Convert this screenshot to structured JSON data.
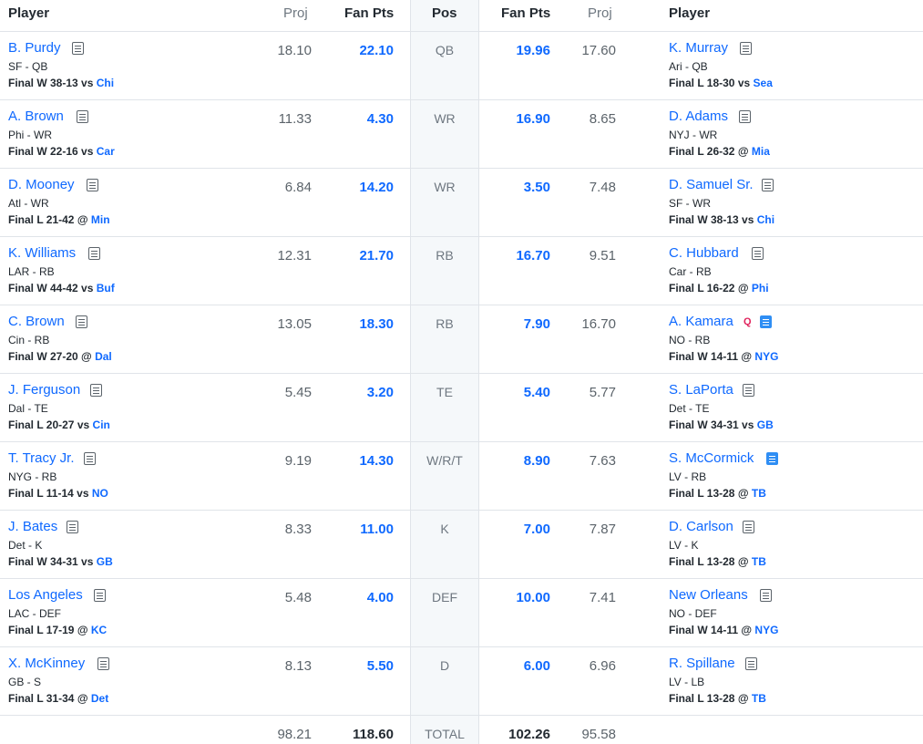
{
  "headers": {
    "left_player": "Player",
    "left_proj": "Proj",
    "left_fan_pts": "Fan Pts",
    "pos": "Pos",
    "right_fan_pts": "Fan Pts",
    "right_proj": "Proj",
    "right_player": "Player"
  },
  "rows": [
    {
      "pos": "QB",
      "left": {
        "name": "B. Purdy",
        "team": "SF - QB",
        "result": "Final W 38-13",
        "loc": "vs",
        "opp": "Chi",
        "proj": "18.10",
        "pts": "22.10",
        "note": "normal"
      },
      "right": {
        "name": "K. Murray",
        "team": "Ari - QB",
        "result": "Final L 18-30",
        "loc": "vs",
        "opp": "Sea",
        "proj": "17.60",
        "pts": "19.96",
        "note": "normal"
      }
    },
    {
      "pos": "WR",
      "left": {
        "name": "A. Brown",
        "team": "Phi - WR",
        "result": "Final W 22-16",
        "loc": "vs",
        "opp": "Car",
        "proj": "11.33",
        "pts": "4.30",
        "note": "normal"
      },
      "right": {
        "name": "D. Adams",
        "team": "NYJ - WR",
        "result": "Final L 26-32",
        "loc": "@",
        "opp": "Mia",
        "proj": "8.65",
        "pts": "16.90",
        "note": "normal"
      }
    },
    {
      "pos": "WR",
      "left": {
        "name": "D. Mooney",
        "team": "Atl - WR",
        "result": "Final L 21-42",
        "loc": "@",
        "opp": "Min",
        "proj": "6.84",
        "pts": "14.20",
        "note": "normal"
      },
      "right": {
        "name": "D. Samuel Sr.",
        "team": "SF - WR",
        "result": "Final W 38-13",
        "loc": "vs",
        "opp": "Chi",
        "proj": "7.48",
        "pts": "3.50",
        "note": "normal"
      }
    },
    {
      "pos": "RB",
      "left": {
        "name": "K. Williams",
        "team": "LAR - RB",
        "result": "Final W 44-42",
        "loc": "vs",
        "opp": "Buf",
        "proj": "12.31",
        "pts": "21.70",
        "note": "normal"
      },
      "right": {
        "name": "C. Hubbard",
        "team": "Car - RB",
        "result": "Final L 16-22",
        "loc": "@",
        "opp": "Phi",
        "proj": "9.51",
        "pts": "16.70",
        "note": "normal"
      }
    },
    {
      "pos": "RB",
      "left": {
        "name": "C. Brown",
        "team": "Cin - RB",
        "result": "Final W 27-20",
        "loc": "@",
        "opp": "Dal",
        "proj": "13.05",
        "pts": "18.30",
        "note": "normal"
      },
      "right": {
        "name": "A. Kamara",
        "status": "Q",
        "team": "NO - RB",
        "result": "Final W 14-11",
        "loc": "@",
        "opp": "NYG",
        "proj": "16.70",
        "pts": "7.90",
        "note": "blue"
      }
    },
    {
      "pos": "TE",
      "left": {
        "name": "J. Ferguson",
        "team": "Dal - TE",
        "result": "Final L 20-27",
        "loc": "vs",
        "opp": "Cin",
        "proj": "5.45",
        "pts": "3.20",
        "note": "normal"
      },
      "right": {
        "name": "S. LaPorta",
        "team": "Det - TE",
        "result": "Final W 34-31",
        "loc": "vs",
        "opp": "GB",
        "proj": "5.77",
        "pts": "5.40",
        "note": "normal"
      }
    },
    {
      "pos": "W/R/T",
      "left": {
        "name": "T. Tracy Jr.",
        "team": "NYG - RB",
        "result": "Final L 11-14",
        "loc": "vs",
        "opp": "NO",
        "proj": "9.19",
        "pts": "14.30",
        "note": "normal"
      },
      "right": {
        "name": "S. McCormick",
        "team": "LV - RB",
        "result": "Final L 13-28",
        "loc": "@",
        "opp": "TB",
        "proj": "7.63",
        "pts": "8.90",
        "note": "blue"
      }
    },
    {
      "pos": "K",
      "left": {
        "name": "J. Bates",
        "team": "Det - K",
        "result": "Final W 34-31",
        "loc": "vs",
        "opp": "GB",
        "proj": "8.33",
        "pts": "11.00",
        "note": "normal"
      },
      "right": {
        "name": "D. Carlson",
        "team": "LV - K",
        "result": "Final L 13-28",
        "loc": "@",
        "opp": "TB",
        "proj": "7.87",
        "pts": "7.00",
        "note": "normal"
      }
    },
    {
      "pos": "DEF",
      "left": {
        "name": "Los Angeles",
        "team": "LAC - DEF",
        "result": "Final L 17-19",
        "loc": "@",
        "opp": "KC",
        "proj": "5.48",
        "pts": "4.00",
        "note": "normal"
      },
      "right": {
        "name": "New Orleans",
        "team": "NO - DEF",
        "result": "Final W 14-11",
        "loc": "@",
        "opp": "NYG",
        "proj": "7.41",
        "pts": "10.00",
        "note": "normal"
      }
    },
    {
      "pos": "D",
      "left": {
        "name": "X. McKinney",
        "team": "GB - S",
        "result": "Final L 31-34",
        "loc": "@",
        "opp": "Det",
        "proj": "8.13",
        "pts": "5.50",
        "note": "normal"
      },
      "right": {
        "name": "R. Spillane",
        "team": "LV - LB",
        "result": "Final L 13-28",
        "loc": "@",
        "opp": "TB",
        "proj": "6.96",
        "pts": "6.00",
        "note": "normal"
      }
    }
  ],
  "totals": {
    "left_proj": "98.21",
    "left_pts": "118.60",
    "label": "TOTAL",
    "right_pts": "102.26",
    "right_proj": "95.58"
  },
  "colors": {
    "link": "#0f69ff",
    "status_q": "#e0235c",
    "note_active": "#2f8ef4",
    "pos_column_bg": "#f5f8fa"
  }
}
